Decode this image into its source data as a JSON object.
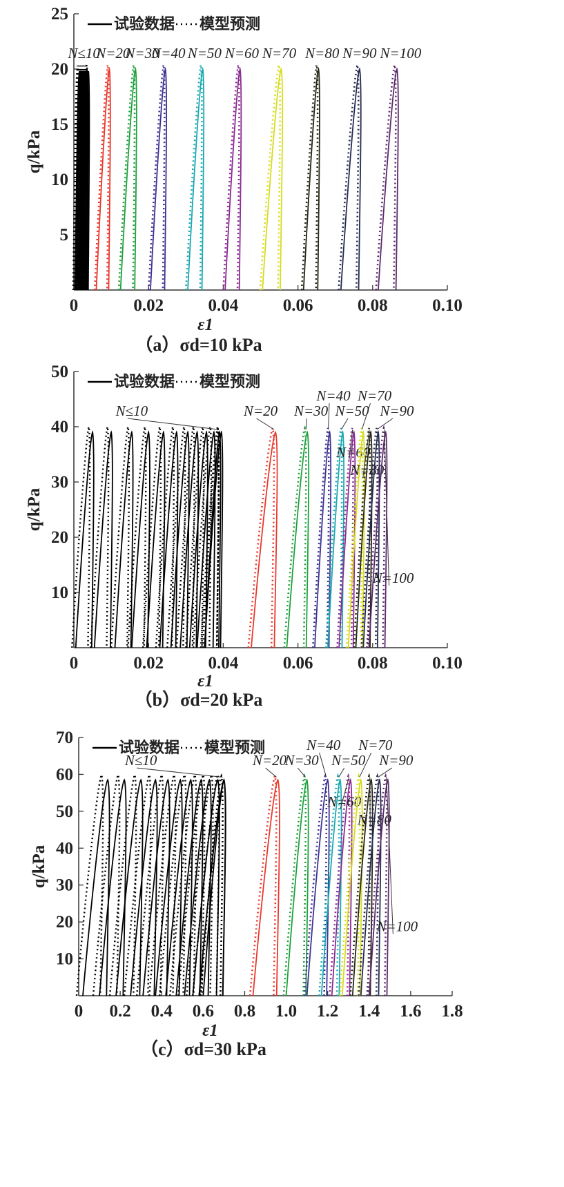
{
  "chart_data": [
    {
      "type": "line",
      "caption": "（a）σd=10 kPa",
      "xlabel": "ε1",
      "ylabel": "q/kPa",
      "xlim": [
        0,
        0.1
      ],
      "ylim": [
        0,
        25
      ],
      "xticks": [
        "0",
        "0.02",
        "0.04",
        "0.06",
        "0.08",
        "0.10"
      ],
      "yticks": [
        "5",
        "10",
        "15",
        "20",
        "25"
      ],
      "xtick_values": [
        0,
        0.02,
        0.04,
        0.06,
        0.08,
        0.1
      ],
      "ytick_values": [
        5,
        10,
        15,
        20,
        25
      ],
      "legend": {
        "experiment": "试验数据",
        "model": "模型预测",
        "position": "top-left"
      },
      "label_row_y": 21,
      "early_cycles": {
        "start": [
          0.0003,
          0.0006,
          0.0009,
          0.0012,
          0.0015,
          0.0018,
          0.0021,
          0.0024,
          0.0027
        ],
        "width": 0.0012,
        "peak": 19.8,
        "peak_eps_offset": 0.0005
      },
      "series": [
        {
          "label": "N≤10",
          "color": "#000000",
          "eps_min": 0.003,
          "eps_max": 0.0035,
          "peak": 20,
          "label_x": 0.0027
        },
        {
          "label": "N=20",
          "color": "#e8382c",
          "eps_min": 0.006,
          "eps_max": 0.0095,
          "peak": 20,
          "label_x": 0.0105
        },
        {
          "label": "N=30",
          "color": "#1ea03c",
          "eps_min": 0.0125,
          "eps_max": 0.0165,
          "peak": 20,
          "label_x": 0.0183
        },
        {
          "label": "N=40",
          "color": "#3d3292",
          "eps_min": 0.0205,
          "eps_max": 0.0245,
          "peak": 20,
          "label_x": 0.0253
        },
        {
          "label": "N=50",
          "color": "#1aa8b0",
          "eps_min": 0.0305,
          "eps_max": 0.0345,
          "peak": 20,
          "label_x": 0.035
        },
        {
          "label": "N=60",
          "color": "#8a2b92",
          "eps_min": 0.0405,
          "eps_max": 0.0445,
          "peak": 20,
          "label_x": 0.045
        },
        {
          "label": "N=70",
          "color": "#d6dc1e",
          "eps_min": 0.0505,
          "eps_max": 0.0555,
          "peak": 20,
          "label_x": 0.055
        },
        {
          "label": "N=80",
          "color": "#262617",
          "eps_min": 0.0615,
          "eps_max": 0.0655,
          "peak": 20,
          "label_x": 0.0665
        },
        {
          "label": "N=90",
          "color": "#262a50",
          "eps_min": 0.0715,
          "eps_max": 0.0765,
          "peak": 20,
          "label_x": 0.0765
        },
        {
          "label": "N=100",
          "color": "#5b2a6c",
          "eps_min": 0.0815,
          "eps_max": 0.0865,
          "peak": 20,
          "label_x": 0.0875
        }
      ]
    },
    {
      "type": "line",
      "caption": "（b）σd=20 kPa",
      "xlabel": "ε1",
      "ylabel": "q/kPa",
      "xlim": [
        0,
        0.1
      ],
      "ylim": [
        0,
        50
      ],
      "xticks": [
        "0",
        "0.02",
        "0.04",
        "0.06",
        "0.08",
        "0.10"
      ],
      "yticks": [
        "10",
        "20",
        "30",
        "40",
        "50"
      ],
      "xtick_values": [
        0,
        0.02,
        0.04,
        0.06,
        0.08,
        0.1
      ],
      "ytick_values": [
        10,
        20,
        30,
        40,
        50
      ],
      "legend": {
        "experiment": "试验数据",
        "model": "模型预测",
        "position": "top-left"
      },
      "label_row_y": 42,
      "early_cycles": {
        "start": [
          0.0005,
          0.0055,
          0.011,
          0.0155,
          0.0195,
          0.023,
          0.026,
          0.0285,
          0.031,
          0.033,
          0.035
        ],
        "width": 0.0045,
        "peak": 39,
        "peak_eps_offset": 0.001
      },
      "series": [
        {
          "label": "N≤10",
          "color": "#000000",
          "eps_min": 0.035,
          "eps_max": 0.039,
          "peak": 39,
          "label_x": 0.0155
        },
        {
          "label": "N=20",
          "color": "#e8382c",
          "eps_min": 0.0475,
          "eps_max": 0.054,
          "peak": 39,
          "label_x": 0.05
        },
        {
          "label": "N=30",
          "color": "#1ea03c",
          "eps_min": 0.057,
          "eps_max": 0.0625,
          "peak": 39,
          "label_x": 0.0635
        },
        {
          "label": "N=40",
          "color": "#3d3292",
          "eps_min": 0.0645,
          "eps_max": 0.0685,
          "peak": 39,
          "label_x": 0.0695
        },
        {
          "label": "N=50",
          "color": "#1aa8b0",
          "eps_min": 0.068,
          "eps_max": 0.072,
          "peak": 39,
          "label_x": 0.0745
        },
        {
          "label": "N=60",
          "color": "#8a2b92",
          "eps_min": 0.071,
          "eps_max": 0.075,
          "peak": 39,
          "label_x": 0.0748
        },
        {
          "label": "N=70",
          "color": "#d6dc1e",
          "eps_min": 0.0735,
          "eps_max": 0.0775,
          "peak": 39,
          "label_x": 0.0805
        },
        {
          "label": "N=80",
          "color": "#262617",
          "eps_min": 0.0755,
          "eps_max": 0.0795,
          "peak": 39,
          "label_x": 0.0785
        },
        {
          "label": "N=90",
          "color": "#262a50",
          "eps_min": 0.0775,
          "eps_max": 0.0815,
          "peak": 39,
          "label_x": 0.0865
        },
        {
          "label": "N=100",
          "color": "#5b2a6c",
          "eps_min": 0.079,
          "eps_max": 0.0835,
          "peak": 39,
          "label_x": 0.0855
        }
      ]
    },
    {
      "type": "line",
      "caption": "（c）σd=30 kPa",
      "xlabel": "ε1",
      "ylabel": "q/kPa",
      "xlim": [
        0,
        1.8
      ],
      "ylim": [
        0,
        70
      ],
      "xticks": [
        "0",
        "0.2",
        "0.4",
        "0.6",
        "0.8",
        "1.0",
        "1.2",
        "1.4",
        "1.6",
        "1.8"
      ],
      "yticks": [
        "10",
        "20",
        "30",
        "40",
        "50",
        "60",
        "70"
      ],
      "xtick_values": [
        0,
        0.2,
        0.4,
        0.6,
        0.8,
        1.0,
        1.2,
        1.4,
        1.6,
        1.8
      ],
      "ytick_values": [
        10,
        20,
        30,
        40,
        50,
        60,
        70
      ],
      "legend": {
        "experiment": "试验数据",
        "model": "模型预测",
        "position": "top-left"
      },
      "label_row_y": 62.5,
      "early_cycles": {
        "start": [
          0.02,
          0.1,
          0.18,
          0.25,
          0.31,
          0.37,
          0.42,
          0.47,
          0.51,
          0.55,
          0.58
        ],
        "width": 0.12,
        "peak": 58.5,
        "peak_eps_offset": 0.03
      },
      "series": [
        {
          "label": "N≤10",
          "color": "#000000",
          "eps_min": 0.6,
          "eps_max": 0.7,
          "peak": 58.5,
          "label_x": 0.3
        },
        {
          "label": "N=20",
          "color": "#e8382c",
          "eps_min": 0.84,
          "eps_max": 0.96,
          "peak": 58.5,
          "label_x": 0.92
        },
        {
          "label": "N=30",
          "color": "#1ea03c",
          "eps_min": 1.0,
          "eps_max": 1.1,
          "peak": 58.5,
          "label_x": 1.075
        },
        {
          "label": "N=40",
          "color": "#3d3292",
          "eps_min": 1.1,
          "eps_max": 1.2,
          "peak": 58.5,
          "label_x": 1.18
        },
        {
          "label": "N=50",
          "color": "#1aa8b0",
          "eps_min": 1.17,
          "eps_max": 1.26,
          "peak": 58.5,
          "label_x": 1.3
        },
        {
          "label": "N=60",
          "color": "#8a2b92",
          "eps_min": 1.22,
          "eps_max": 1.31,
          "peak": 58.5,
          "label_x": 1.28
        },
        {
          "label": "N=70",
          "color": "#d6dc1e",
          "eps_min": 1.27,
          "eps_max": 1.36,
          "peak": 58.5,
          "label_x": 1.43
        },
        {
          "label": "N=80",
          "color": "#262617",
          "eps_min": 1.32,
          "eps_max": 1.41,
          "peak": 58.5,
          "label_x": 1.425
        },
        {
          "label": "N=90",
          "color": "#262a50",
          "eps_min": 1.36,
          "eps_max": 1.45,
          "peak": 58.5,
          "label_x": 1.53
        },
        {
          "label": "N=100",
          "color": "#5b2a6c",
          "eps_min": 1.4,
          "eps_max": 1.49,
          "peak": 58.5,
          "label_x": 1.535
        }
      ]
    }
  ]
}
